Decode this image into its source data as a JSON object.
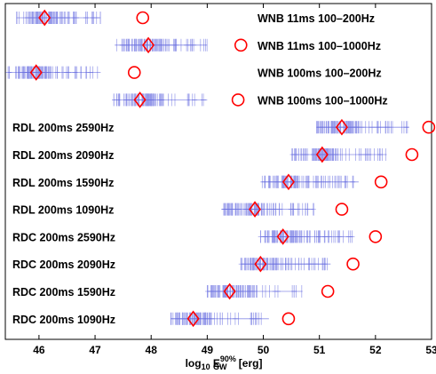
{
  "chart_data": {
    "type": "scatter",
    "xlabel": {
      "base": "log",
      "base_sub": "10",
      "main": " E",
      "sup": "90%",
      "sub": "GW",
      "unit": " [erg]"
    },
    "xlim": [
      45.4,
      53
    ],
    "xticks": [
      46,
      47,
      48,
      49,
      50,
      51,
      52,
      53
    ],
    "grid": false,
    "rows": [
      {
        "label": "WNB 11ms 100–200Hz",
        "label_side": "right",
        "dist_min": 45.6,
        "dist_max": 47.1,
        "diamond": 46.1,
        "circle": 47.85
      },
      {
        "label": "WNB 11ms 100–1000Hz",
        "label_side": "right",
        "dist_min": 47.35,
        "dist_max": 49.0,
        "diamond": 47.95,
        "circle": 49.6
      },
      {
        "label": "WNB 100ms 100–200Hz",
        "label_side": "right",
        "dist_min": 45.45,
        "dist_max": 47.1,
        "diamond": 45.95,
        "circle": 47.7
      },
      {
        "label": "WNB 100ms 100–1000Hz",
        "label_side": "right",
        "dist_min": 47.3,
        "dist_max": 49.0,
        "diamond": 47.8,
        "circle": 49.55
      },
      {
        "label": "RDL 200ms 2590Hz",
        "label_side": "left",
        "dist_min": 50.95,
        "dist_max": 52.6,
        "diamond": 51.4,
        "circle": 52.95
      },
      {
        "label": "RDL 200ms 2090Hz",
        "label_side": "left",
        "dist_min": 50.5,
        "dist_max": 52.2,
        "diamond": 51.05,
        "circle": 52.65
      },
      {
        "label": "RDL 200ms 1590Hz",
        "label_side": "left",
        "dist_min": 49.95,
        "dist_max": 51.7,
        "diamond": 50.45,
        "circle": 52.1
      },
      {
        "label": "RDL 200ms 1090Hz",
        "label_side": "left",
        "dist_min": 49.25,
        "dist_max": 50.9,
        "diamond": 49.85,
        "circle": 51.4
      },
      {
        "label": "RDC 200ms 2590Hz",
        "label_side": "left",
        "dist_min": 49.95,
        "dist_max": 51.6,
        "diamond": 50.35,
        "circle": 52.0
      },
      {
        "label": "RDC 200ms 2090Hz",
        "label_side": "left",
        "dist_min": 49.6,
        "dist_max": 51.2,
        "diamond": 49.95,
        "circle": 51.6
      },
      {
        "label": "RDC 200ms 1590Hz",
        "label_side": "left",
        "dist_min": 49.0,
        "dist_max": 50.7,
        "diamond": 49.4,
        "circle": 51.15
      },
      {
        "label": "RDC 200ms 1090Hz",
        "label_side": "left",
        "dist_min": 48.35,
        "dist_max": 50.1,
        "diamond": 48.75,
        "circle": 50.45
      }
    ],
    "colors": {
      "marker": "#ff0000",
      "dist": "#3f46d8",
      "axis": "#000000"
    }
  }
}
